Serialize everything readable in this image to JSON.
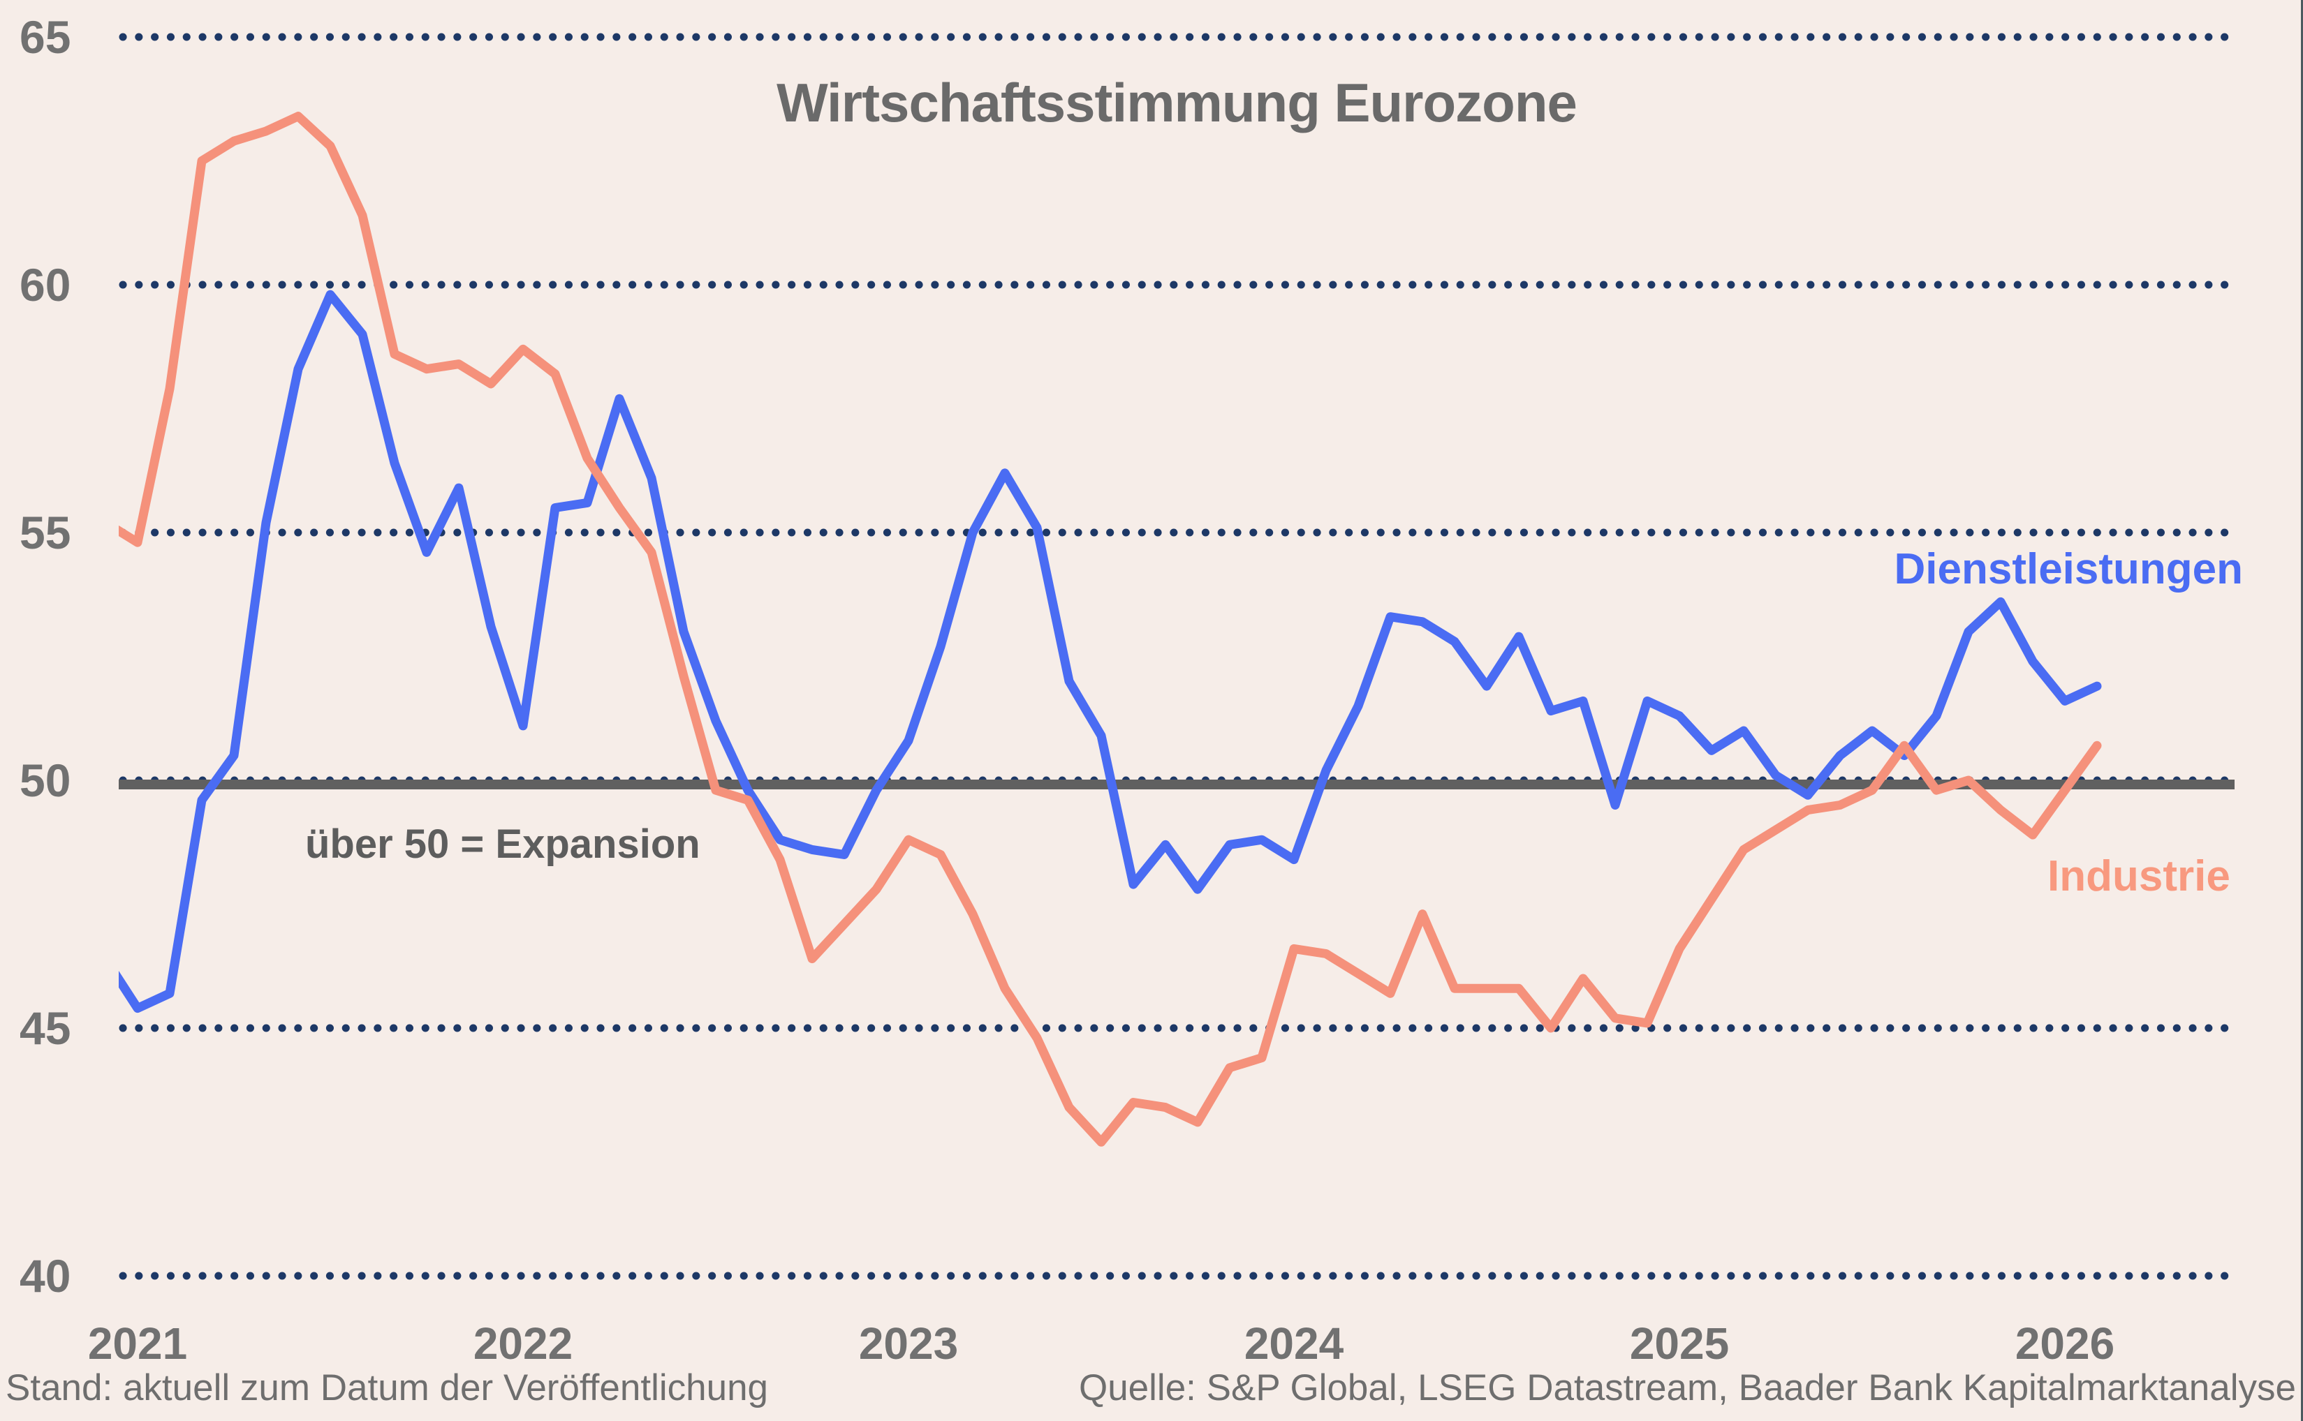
{
  "title": "Wirtschaftsstimmung Eurozone",
  "annotation": "über 50 = Expansion",
  "legend": {
    "services": "Dienstleistungen",
    "industry": "Industrie"
  },
  "footer": {
    "left": "Stand: aktuell zum Datum der Veröffentlichung",
    "right": "Quelle: S&P Global, LSEG Datastream, Baader Bank Kapitalmarktanalyse"
  },
  "colors": {
    "background": "#f6ede8",
    "services_line": "#4a6cf3",
    "industry_line": "#f5917b",
    "industry_label": "#f8997f",
    "gridline_dots": "#1d3866",
    "reference_line": "#606060",
    "axis_text": "#717171"
  },
  "chart_data": {
    "type": "line",
    "title": "Wirtschaftsstimmung Eurozone",
    "xlabel": "",
    "ylabel": "",
    "frequency": "monthly",
    "x_start": "2020-12",
    "x_end": "2026-02",
    "x_tick_labels": [
      "2021",
      "2022",
      "2023",
      "2024",
      "2025",
      "2026"
    ],
    "y_ticks": [
      40,
      45,
      50,
      55,
      60,
      65
    ],
    "ylim": [
      38.5,
      65.7
    ],
    "grid": "dotted horizontal",
    "legend_position": "labels beside line ends",
    "reference_line": {
      "value": 50,
      "label": "über 50 = Expansion"
    },
    "series": [
      {
        "name": "Dienstleistungen",
        "values": [
          46.4,
          45.4,
          45.7,
          49.6,
          50.5,
          55.2,
          58.3,
          59.8,
          59.0,
          56.4,
          54.6,
          55.9,
          53.1,
          51.1,
          55.5,
          55.6,
          57.7,
          56.1,
          53.0,
          51.2,
          49.8,
          48.8,
          48.6,
          48.5,
          49.8,
          50.8,
          52.7,
          55.0,
          56.2,
          55.1,
          52.0,
          50.9,
          47.9,
          48.7,
          47.8,
          48.7,
          48.8,
          48.4,
          50.2,
          51.5,
          53.3,
          53.2,
          52.8,
          51.9,
          52.9,
          51.4,
          51.6,
          49.5,
          51.6,
          51.3,
          50.6,
          51.0,
          50.1,
          49.7,
          50.5,
          51.0,
          50.5,
          51.3,
          53.0,
          53.6,
          52.4,
          51.6,
          51.9
        ]
      },
      {
        "name": "Industrie",
        "values": [
          55.2,
          54.8,
          57.9,
          62.5,
          62.9,
          63.1,
          63.4,
          62.8,
          61.4,
          58.6,
          58.3,
          58.4,
          58.0,
          58.7,
          58.2,
          56.5,
          55.5,
          54.6,
          52.1,
          49.8,
          49.6,
          48.4,
          46.4,
          47.1,
          47.8,
          48.8,
          48.5,
          47.3,
          45.8,
          44.8,
          43.4,
          42.7,
          43.5,
          43.4,
          43.1,
          44.2,
          44.4,
          46.6,
          46.5,
          46.1,
          45.7,
          47.3,
          45.8,
          45.8,
          45.8,
          45.0,
          46.0,
          45.2,
          45.1,
          46.6,
          47.6,
          48.6,
          49.0,
          49.4,
          49.5,
          49.8,
          50.7,
          49.8,
          50.0,
          49.4,
          48.9,
          49.8,
          50.7
        ]
      }
    ]
  }
}
